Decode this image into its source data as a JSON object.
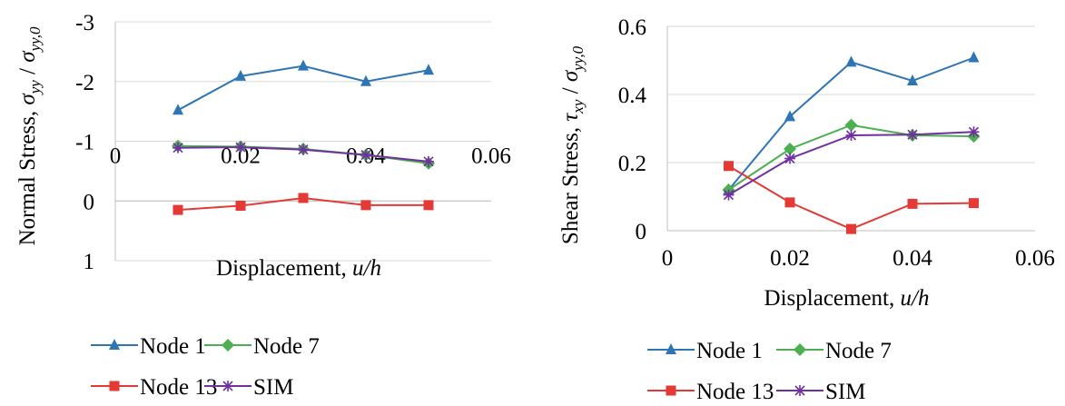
{
  "chart_data": [
    {
      "type": "line",
      "ylabel": "Normal Stress, σyy / σyy,0",
      "ylabel_parts": {
        "prefix": "Normal Stress, ",
        "sym": "σ",
        "sub": "yy",
        "mid": " / ",
        "sym2": "σ",
        "sub2": "yy,0"
      },
      "xlabel": "Displacement, u/h",
      "xlabel_parts": {
        "prefix": "Displacement, ",
        "italic": "u/h"
      },
      "xlim": [
        0,
        0.06
      ],
      "ylim": [
        -3,
        1
      ],
      "y_inverted": true,
      "x_axis_crosses_at": 0,
      "xticks": [
        "0",
        "0.02",
        "0.04",
        "0.06"
      ],
      "yticks": [
        "-3",
        "-2",
        "-1",
        "0",
        "1"
      ],
      "grid": "horizontal",
      "legend": "bottom",
      "series": [
        {
          "name": "Node 1",
          "color": "#2e75b6",
          "marker": "triangle",
          "x": [
            0.01,
            0.02,
            0.03,
            0.04,
            0.05
          ],
          "y": [
            -1.52,
            -2.09,
            -2.26,
            -2.0,
            -2.19
          ]
        },
        {
          "name": "Node 7",
          "color": "#4caf50",
          "marker": "diamond",
          "x": [
            0.01,
            0.02,
            0.03,
            0.04,
            0.05
          ],
          "y": [
            -0.92,
            -0.91,
            -0.87,
            -0.77,
            -0.63
          ]
        },
        {
          "name": "Node 13",
          "color": "#e53935",
          "marker": "square",
          "x": [
            0.01,
            0.02,
            0.03,
            0.04,
            0.05
          ],
          "y": [
            0.15,
            0.08,
            -0.05,
            0.07,
            0.07
          ]
        },
        {
          "name": "SIM",
          "color": "#7030a0",
          "marker": "star",
          "x": [
            0.01,
            0.02,
            0.03,
            0.04,
            0.05
          ],
          "y": [
            -0.89,
            -0.9,
            -0.86,
            -0.77,
            -0.66
          ]
        }
      ]
    },
    {
      "type": "line",
      "ylabel": "Shear Stress, τxy / σyy,0",
      "ylabel_parts": {
        "prefix": "Shear Stress, ",
        "sym": "τ",
        "sub": "xy",
        "mid": " / ",
        "sym2": "σ",
        "sub2": "yy,0"
      },
      "xlabel": "Displacement, u/h",
      "xlabel_parts": {
        "prefix": "Displacement, ",
        "italic": "u/h"
      },
      "xlim": [
        0,
        0.06
      ],
      "ylim": [
        0,
        0.6
      ],
      "y_inverted": false,
      "x_axis_crosses_at": 0,
      "xticks": [
        "0",
        "0.02",
        "0.04",
        "0.06"
      ],
      "yticks": [
        "0",
        "0.2",
        "0.4",
        "0.6"
      ],
      "grid": "horizontal",
      "legend": "bottom",
      "series": [
        {
          "name": "Node 1",
          "color": "#2e75b6",
          "marker": "triangle",
          "x": [
            0.01,
            0.02,
            0.03,
            0.04,
            0.05
          ],
          "y": [
            0.12,
            0.335,
            0.495,
            0.44,
            0.508
          ]
        },
        {
          "name": "Node 7",
          "color": "#4caf50",
          "marker": "diamond",
          "x": [
            0.01,
            0.02,
            0.03,
            0.04,
            0.05
          ],
          "y": [
            0.12,
            0.24,
            0.31,
            0.28,
            0.277
          ]
        },
        {
          "name": "Node 13",
          "color": "#e53935",
          "marker": "square",
          "x": [
            0.01,
            0.02,
            0.03,
            0.04,
            0.05
          ],
          "y": [
            0.19,
            0.083,
            0.005,
            0.079,
            0.081
          ]
        },
        {
          "name": "SIM",
          "color": "#7030a0",
          "marker": "star",
          "x": [
            0.01,
            0.02,
            0.03,
            0.04,
            0.05
          ],
          "y": [
            0.105,
            0.212,
            0.28,
            0.282,
            0.29
          ]
        }
      ]
    }
  ]
}
